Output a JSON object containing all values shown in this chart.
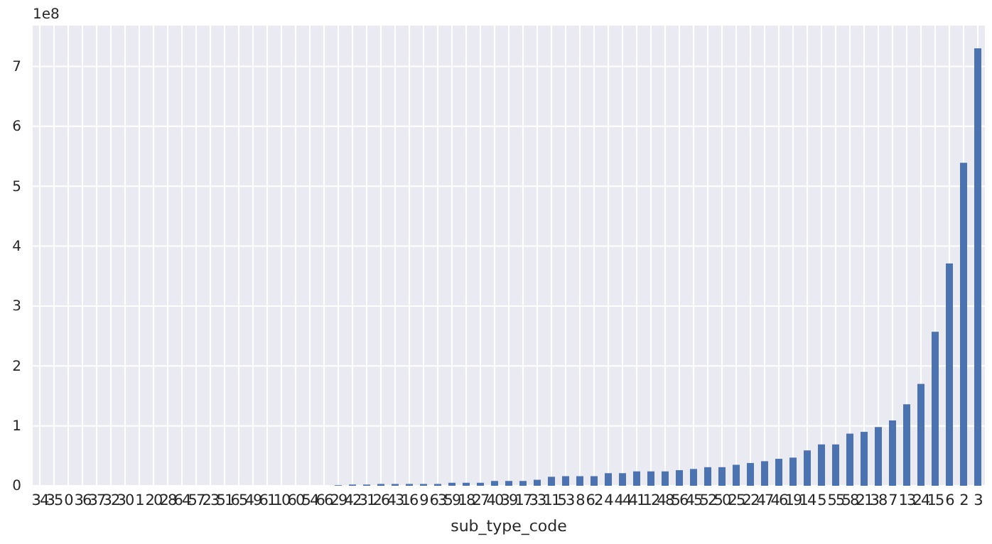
{
  "chart_data": {
    "type": "bar",
    "xlabel": "sub_type_code",
    "categories": [
      "34",
      "35",
      "0",
      "36",
      "37",
      "32",
      "30",
      "1",
      "20",
      "28",
      "64",
      "57",
      "23",
      "51",
      "65",
      "49",
      "61",
      "10",
      "60",
      "54",
      "66",
      "29",
      "42",
      "31",
      "26",
      "43",
      "16",
      "9",
      "63",
      "59",
      "18",
      "27",
      "40",
      "39",
      "17",
      "33",
      "11",
      "53",
      "8",
      "62",
      "4",
      "44",
      "41",
      "12",
      "48",
      "56",
      "45",
      "52",
      "50",
      "25",
      "22",
      "47",
      "46",
      "19",
      "14",
      "5",
      "55",
      "58",
      "21",
      "38",
      "7",
      "13",
      "24",
      "15",
      "6",
      "2",
      "3"
    ],
    "values": [
      0,
      0,
      0,
      0,
      0,
      0,
      0,
      0,
      0,
      0,
      0,
      0,
      0,
      0,
      0,
      0,
      0,
      0,
      0,
      0,
      0,
      0.01,
      0.02,
      0.02,
      0.03,
      0.03,
      0.03,
      0.03,
      0.03,
      0.05,
      0.05,
      0.05,
      0.08,
      0.08,
      0.08,
      0.1,
      0.15,
      0.16,
      0.16,
      0.16,
      0.21,
      0.21,
      0.24,
      0.24,
      0.24,
      0.26,
      0.28,
      0.31,
      0.31,
      0.35,
      0.38,
      0.41,
      0.45,
      0.47,
      0.59,
      0.69,
      0.69,
      0.87,
      0.9,
      0.98,
      1.09,
      1.36,
      1.7,
      2.57,
      3.71,
      5.39,
      7.3
    ],
    "color": "#4c72b0",
    "ylim": [
      0,
      7.68
    ],
    "yticks": [
      0,
      1,
      2,
      3,
      4,
      5,
      6,
      7
    ],
    "grid": true,
    "annotations": [
      "1e8"
    ]
  }
}
